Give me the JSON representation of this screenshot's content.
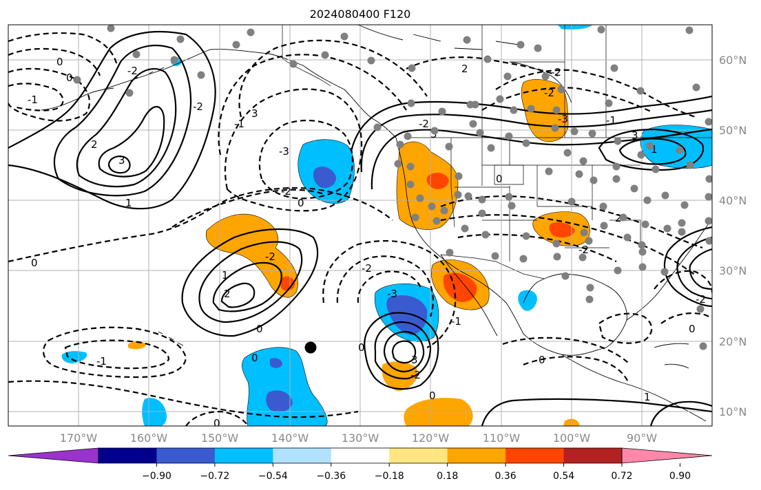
{
  "title": "2024080400 F120",
  "map": {
    "lon_labels": [
      "170°W",
      "160°W",
      "150°W",
      "140°W",
      "130°W",
      "120°W",
      "110°W",
      "100°W",
      "90°W"
    ],
    "lat_labels": [
      "60°N",
      "50°N",
      "40°N",
      "30°N",
      "20°N",
      "10°N"
    ],
    "contour_labels": [
      {
        "text": "0"
      },
      {
        "text": "-1"
      },
      {
        "text": "0"
      },
      {
        "text": "3"
      },
      {
        "text": "-2"
      },
      {
        "text": "2"
      },
      {
        "text": "-2"
      },
      {
        "text": "-1"
      },
      {
        "text": "-3"
      },
      {
        "text": "3"
      },
      {
        "text": "1"
      },
      {
        "text": "-2"
      },
      {
        "text": "0"
      },
      {
        "text": "0"
      },
      {
        "text": "1"
      },
      {
        "text": "2"
      },
      {
        "text": "0"
      },
      {
        "text": "-2"
      },
      {
        "text": "-1"
      },
      {
        "text": "-2"
      },
      {
        "text": "0"
      },
      {
        "text": "-3"
      },
      {
        "text": "3"
      },
      {
        "text": "-2"
      },
      {
        "text": "2"
      },
      {
        "text": "-2"
      },
      {
        "text": "-2"
      },
      {
        "text": "-3"
      },
      {
        "text": "3"
      },
      {
        "text": "1"
      },
      {
        "text": "-1"
      },
      {
        "text": "0"
      },
      {
        "text": "0"
      },
      {
        "text": "-2"
      },
      {
        "text": "3"
      },
      {
        "text": "-2"
      },
      {
        "text": "0"
      },
      {
        "text": "2"
      },
      {
        "text": "0"
      },
      {
        "text": "1"
      },
      {
        "text": "-1"
      },
      {
        "text": "0"
      },
      {
        "text": "0"
      },
      {
        "text": "-2"
      }
    ]
  },
  "colorbar": {
    "colors": [
      "#9933cc",
      "#00008b",
      "#3a5bd0",
      "#00bfff",
      "#b0e2ff",
      "#ffffff",
      "#ffe680",
      "#ffa500",
      "#ff4500",
      "#b22222",
      "#ff88aa"
    ],
    "ticks": [
      "−0.90",
      "−0.72",
      "−0.54",
      "−0.36",
      "−0.18",
      "0.18",
      "0.36",
      "0.54",
      "0.72",
      "0.90"
    ]
  },
  "colors": {
    "pos_light": "#ffa500",
    "pos_strong": "#ff4500",
    "neg_light": "#00bfff",
    "neg_strong": "#3a5bd0",
    "station_dot": "#808080"
  }
}
